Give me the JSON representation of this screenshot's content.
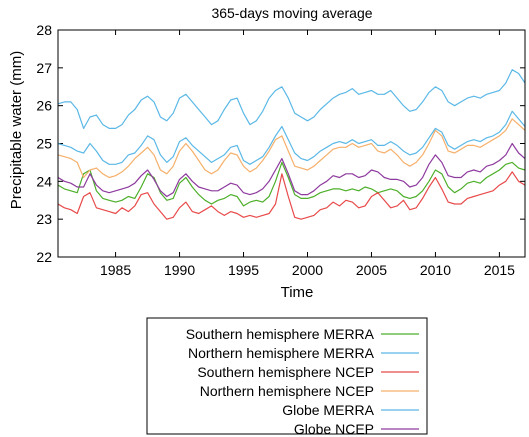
{
  "chart_data": {
    "type": "line",
    "title": "365-days moving average",
    "xlabel": "Time",
    "ylabel": "Precipitable water (mm)",
    "xlim": [
      1980.5,
      2017
    ],
    "ylim": [
      22,
      28
    ],
    "xticks": [
      1985,
      1990,
      1995,
      2000,
      2005,
      2010,
      2015
    ],
    "yticks": [
      22,
      23,
      24,
      25,
      26,
      27,
      28
    ],
    "grid": false,
    "legend": "bottom-center",
    "series": [
      {
        "name": "Southern hemisphere MERRA",
        "color": "#4daf2a",
        "x": [
          1980.5,
          1981,
          1981.5,
          1982,
          1982.5,
          1983,
          1983.5,
          1984,
          1984.5,
          1985,
          1985.5,
          1986,
          1986.5,
          1987,
          1987.5,
          1988,
          1988.5,
          1989,
          1989.5,
          1990,
          1990.5,
          1991,
          1991.5,
          1992,
          1992.5,
          1993,
          1993.5,
          1994,
          1994.5,
          1995,
          1995.5,
          1996,
          1996.5,
          1997,
          1997.5,
          1998,
          1998.5,
          1999,
          1999.5,
          2000,
          2000.5,
          2001,
          2001.5,
          2002,
          2002.5,
          2003,
          2003.5,
          2004,
          2004.5,
          2005,
          2005.5,
          2006,
          2006.5,
          2007,
          2007.5,
          2008,
          2008.5,
          2009,
          2009.5,
          2010,
          2010.5,
          2011,
          2011.5,
          2012,
          2012.5,
          2013,
          2013.5,
          2014,
          2014.5,
          2015,
          2015.5,
          2016,
          2016.5,
          2017
        ],
        "y": [
          23.9,
          23.8,
          23.75,
          23.7,
          24.2,
          24.3,
          23.75,
          23.55,
          23.5,
          23.45,
          23.5,
          23.6,
          23.55,
          23.85,
          24.2,
          24.1,
          23.7,
          23.5,
          23.55,
          23.95,
          24.1,
          23.85,
          23.65,
          23.5,
          23.4,
          23.5,
          23.55,
          23.65,
          23.6,
          23.35,
          23.45,
          23.5,
          23.45,
          23.6,
          24.0,
          24.5,
          24.1,
          23.65,
          23.55,
          23.55,
          23.6,
          23.7,
          23.75,
          23.8,
          23.8,
          23.75,
          23.8,
          23.75,
          23.85,
          23.8,
          23.7,
          23.75,
          23.8,
          23.75,
          23.6,
          23.55,
          23.6,
          23.75,
          24.0,
          24.3,
          24.2,
          23.85,
          23.7,
          23.8,
          23.95,
          24.0,
          23.95,
          24.1,
          24.2,
          24.3,
          24.45,
          24.5,
          24.35,
          24.3
        ]
      },
      {
        "name": "Northern hemisphere MERRA",
        "color": "#5bb8e6",
        "x": [
          1980.5,
          1981,
          1981.5,
          1982,
          1982.5,
          1983,
          1983.5,
          1984,
          1984.5,
          1985,
          1985.5,
          1986,
          1986.5,
          1987,
          1987.5,
          1988,
          1988.5,
          1989,
          1989.5,
          1990,
          1990.5,
          1991,
          1991.5,
          1992,
          1992.5,
          1993,
          1993.5,
          1994,
          1994.5,
          1995,
          1995.5,
          1996,
          1996.5,
          1997,
          1997.5,
          1998,
          1998.5,
          1999,
          1999.5,
          2000,
          2000.5,
          2001,
          2001.5,
          2002,
          2002.5,
          2003,
          2003.5,
          2004,
          2004.5,
          2005,
          2005.5,
          2006,
          2006.5,
          2007,
          2007.5,
          2008,
          2008.5,
          2009,
          2009.5,
          2010,
          2010.5,
          2011,
          2011.5,
          2012,
          2012.5,
          2013,
          2013.5,
          2014,
          2014.5,
          2015,
          2015.5,
          2016,
          2016.5,
          2017
        ],
        "y": [
          26.05,
          26.1,
          26.1,
          25.9,
          25.4,
          25.7,
          25.75,
          25.5,
          25.4,
          25.4,
          25.5,
          25.75,
          25.9,
          26.15,
          26.25,
          26.1,
          25.7,
          25.6,
          25.8,
          26.2,
          26.3,
          26.1,
          25.9,
          25.7,
          25.5,
          25.6,
          25.9,
          26.15,
          26.2,
          25.8,
          25.5,
          25.6,
          25.85,
          26.2,
          26.4,
          26.5,
          26.2,
          25.8,
          25.7,
          25.6,
          25.7,
          25.9,
          26.05,
          26.2,
          26.3,
          26.35,
          26.45,
          26.3,
          26.35,
          26.4,
          26.3,
          26.3,
          26.4,
          26.2,
          26.0,
          25.85,
          25.9,
          26.1,
          26.35,
          26.5,
          26.4,
          26.1,
          26.0,
          26.1,
          26.2,
          26.25,
          26.2,
          26.3,
          26.35,
          26.4,
          26.6,
          26.95,
          26.85,
          26.6
        ]
      },
      {
        "name": "Southern hemisphere NCEP",
        "color": "#e84a4a",
        "x": [
          1980.5,
          1981,
          1981.5,
          1982,
          1982.5,
          1983,
          1983.5,
          1984,
          1984.5,
          1985,
          1985.5,
          1986,
          1986.5,
          1987,
          1987.5,
          1988,
          1988.5,
          1989,
          1989.5,
          1990,
          1990.5,
          1991,
          1991.5,
          1992,
          1992.5,
          1993,
          1993.5,
          1994,
          1994.5,
          1995,
          1995.5,
          1996,
          1996.5,
          1997,
          1997.5,
          1998,
          1998.5,
          1999,
          1999.5,
          2000,
          2000.5,
          2001,
          2001.5,
          2002,
          2002.5,
          2003,
          2003.5,
          2004,
          2004.5,
          2005,
          2005.5,
          2006,
          2006.5,
          2007,
          2007.5,
          2008,
          2008.5,
          2009,
          2009.5,
          2010,
          2010.5,
          2011,
          2011.5,
          2012,
          2012.5,
          2013,
          2013.5,
          2014,
          2014.5,
          2015,
          2015.5,
          2016,
          2016.5,
          2017
        ],
        "y": [
          23.4,
          23.3,
          23.25,
          23.15,
          23.6,
          23.7,
          23.3,
          23.25,
          23.2,
          23.15,
          23.3,
          23.2,
          23.35,
          23.65,
          23.7,
          23.4,
          23.2,
          23.0,
          23.05,
          23.3,
          23.45,
          23.2,
          23.15,
          23.25,
          23.35,
          23.2,
          23.1,
          23.2,
          23.15,
          23.05,
          23.1,
          23.05,
          23.1,
          23.15,
          23.4,
          24.2,
          23.6,
          23.05,
          23.0,
          23.05,
          23.1,
          23.25,
          23.3,
          23.45,
          23.35,
          23.5,
          23.45,
          23.3,
          23.35,
          23.6,
          23.7,
          23.5,
          23.3,
          23.35,
          23.5,
          23.25,
          23.3,
          23.55,
          23.85,
          24.1,
          23.8,
          23.45,
          23.4,
          23.4,
          23.55,
          23.6,
          23.65,
          23.7,
          23.75,
          23.9,
          24.0,
          24.25,
          24.0,
          23.9
        ]
      },
      {
        "name": "Northern hemisphere NCEP",
        "color": "#f5b06b",
        "x": [
          1980.5,
          1981,
          1981.5,
          1982,
          1982.5,
          1983,
          1983.5,
          1984,
          1984.5,
          1985,
          1985.5,
          1986,
          1986.5,
          1987,
          1987.5,
          1988,
          1988.5,
          1989,
          1989.5,
          1990,
          1990.5,
          1991,
          1991.5,
          1992,
          1992.5,
          1993,
          1993.5,
          1994,
          1994.5,
          1995,
          1995.5,
          1996,
          1996.5,
          1997,
          1997.5,
          1998,
          1998.5,
          1999,
          1999.5,
          2000,
          2000.5,
          2001,
          2001.5,
          2002,
          2002.5,
          2003,
          2003.5,
          2004,
          2004.5,
          2005,
          2005.5,
          2006,
          2006.5,
          2007,
          2007.5,
          2008,
          2008.5,
          2009,
          2009.5,
          2010,
          2010.5,
          2011,
          2011.5,
          2012,
          2012.5,
          2013,
          2013.5,
          2014,
          2014.5,
          2015,
          2015.5,
          2016,
          2016.5,
          2017
        ],
        "y": [
          24.7,
          24.65,
          24.6,
          24.5,
          24.1,
          24.3,
          24.35,
          24.2,
          24.1,
          24.15,
          24.25,
          24.4,
          24.6,
          24.75,
          24.9,
          24.7,
          24.3,
          24.2,
          24.4,
          24.8,
          25.0,
          24.8,
          24.55,
          24.3,
          24.2,
          24.3,
          24.55,
          24.75,
          24.7,
          24.4,
          24.25,
          24.35,
          24.55,
          24.8,
          25.1,
          25.2,
          24.8,
          24.4,
          24.35,
          24.3,
          24.4,
          24.55,
          24.7,
          24.85,
          24.9,
          24.9,
          25.0,
          24.9,
          24.95,
          25.0,
          24.8,
          24.75,
          24.85,
          24.7,
          24.5,
          24.4,
          24.5,
          24.7,
          25.0,
          25.35,
          25.2,
          24.8,
          24.75,
          24.85,
          24.95,
          24.95,
          24.9,
          25.0,
          25.1,
          25.2,
          25.35,
          25.65,
          25.5,
          25.35
        ]
      },
      {
        "name": "Globe MERRA",
        "color": "#5bb8e6",
        "x": [
          1980.5,
          1981,
          1981.5,
          1982,
          1982.5,
          1983,
          1983.5,
          1984,
          1984.5,
          1985,
          1985.5,
          1986,
          1986.5,
          1987,
          1987.5,
          1988,
          1988.5,
          1989,
          1989.5,
          1990,
          1990.5,
          1991,
          1991.5,
          1992,
          1992.5,
          1993,
          1993.5,
          1994,
          1994.5,
          1995,
          1995.5,
          1996,
          1996.5,
          1997,
          1997.5,
          1998,
          1998.5,
          1999,
          1999.5,
          2000,
          2000.5,
          2001,
          2001.5,
          2002,
          2002.5,
          2003,
          2003.5,
          2004,
          2004.5,
          2005,
          2005.5,
          2006,
          2006.5,
          2007,
          2007.5,
          2008,
          2008.5,
          2009,
          2009.5,
          2010,
          2010.5,
          2011,
          2011.5,
          2012,
          2012.5,
          2013,
          2013.5,
          2014,
          2014.5,
          2015,
          2015.5,
          2016,
          2016.5,
          2017
        ],
        "y": [
          25.0,
          24.95,
          24.9,
          24.8,
          24.75,
          25.0,
          24.8,
          24.55,
          24.45,
          24.45,
          24.5,
          24.7,
          24.75,
          24.95,
          25.2,
          25.1,
          24.7,
          24.5,
          24.65,
          25.05,
          25.15,
          24.95,
          24.8,
          24.65,
          24.5,
          24.6,
          24.7,
          24.9,
          24.95,
          24.55,
          24.45,
          24.55,
          24.65,
          24.9,
          25.2,
          25.45,
          25.1,
          24.75,
          24.6,
          24.55,
          24.65,
          24.8,
          24.9,
          25.0,
          25.05,
          25.0,
          25.1,
          25.0,
          25.05,
          25.1,
          24.95,
          24.95,
          25.05,
          24.95,
          24.8,
          24.7,
          24.75,
          24.9,
          25.15,
          25.4,
          25.3,
          24.95,
          24.85,
          24.95,
          25.05,
          25.1,
          25.05,
          25.15,
          25.2,
          25.3,
          25.5,
          25.85,
          25.65,
          25.45
        ]
      },
      {
        "name": "Globe NCEP",
        "color": "#8e3b9e",
        "x": [
          1980.5,
          1981,
          1981.5,
          1982,
          1982.5,
          1983,
          1983.5,
          1984,
          1984.5,
          1985,
          1985.5,
          1986,
          1986.5,
          1987,
          1987.5,
          1988,
          1988.5,
          1989,
          1989.5,
          1990,
          1990.5,
          1991,
          1991.5,
          1992,
          1992.5,
          1993,
          1993.5,
          1994,
          1994.5,
          1995,
          1995.5,
          1996,
          1996.5,
          1997,
          1997.5,
          1998,
          1998.5,
          1999,
          1999.5,
          2000,
          2000.5,
          2001,
          2001.5,
          2002,
          2002.5,
          2003,
          2003.5,
          2004,
          2004.5,
          2005,
          2005.5,
          2006,
          2006.5,
          2007,
          2007.5,
          2008,
          2008.5,
          2009,
          2009.5,
          2010,
          2010.5,
          2011,
          2011.5,
          2012,
          2012.5,
          2013,
          2013.5,
          2014,
          2014.5,
          2015,
          2015.5,
          2016,
          2016.5,
          2017
        ],
        "y": [
          24.1,
          24.0,
          23.95,
          23.85,
          23.85,
          24.2,
          23.9,
          23.75,
          23.7,
          23.75,
          23.8,
          23.85,
          23.95,
          24.15,
          24.3,
          24.05,
          23.75,
          23.6,
          23.7,
          24.05,
          24.2,
          24.0,
          23.85,
          23.8,
          23.75,
          23.75,
          23.85,
          23.95,
          23.9,
          23.7,
          23.65,
          23.7,
          23.8,
          24.0,
          24.3,
          24.6,
          24.2,
          23.75,
          23.65,
          23.65,
          23.75,
          23.9,
          24.0,
          24.15,
          24.1,
          24.2,
          24.2,
          24.1,
          24.15,
          24.3,
          24.25,
          24.1,
          24.05,
          24.05,
          24.0,
          23.85,
          23.9,
          24.1,
          24.45,
          24.7,
          24.5,
          24.15,
          24.1,
          24.1,
          24.25,
          24.3,
          24.25,
          24.4,
          24.45,
          24.55,
          24.7,
          25.0,
          24.75,
          24.6
        ]
      }
    ]
  }
}
